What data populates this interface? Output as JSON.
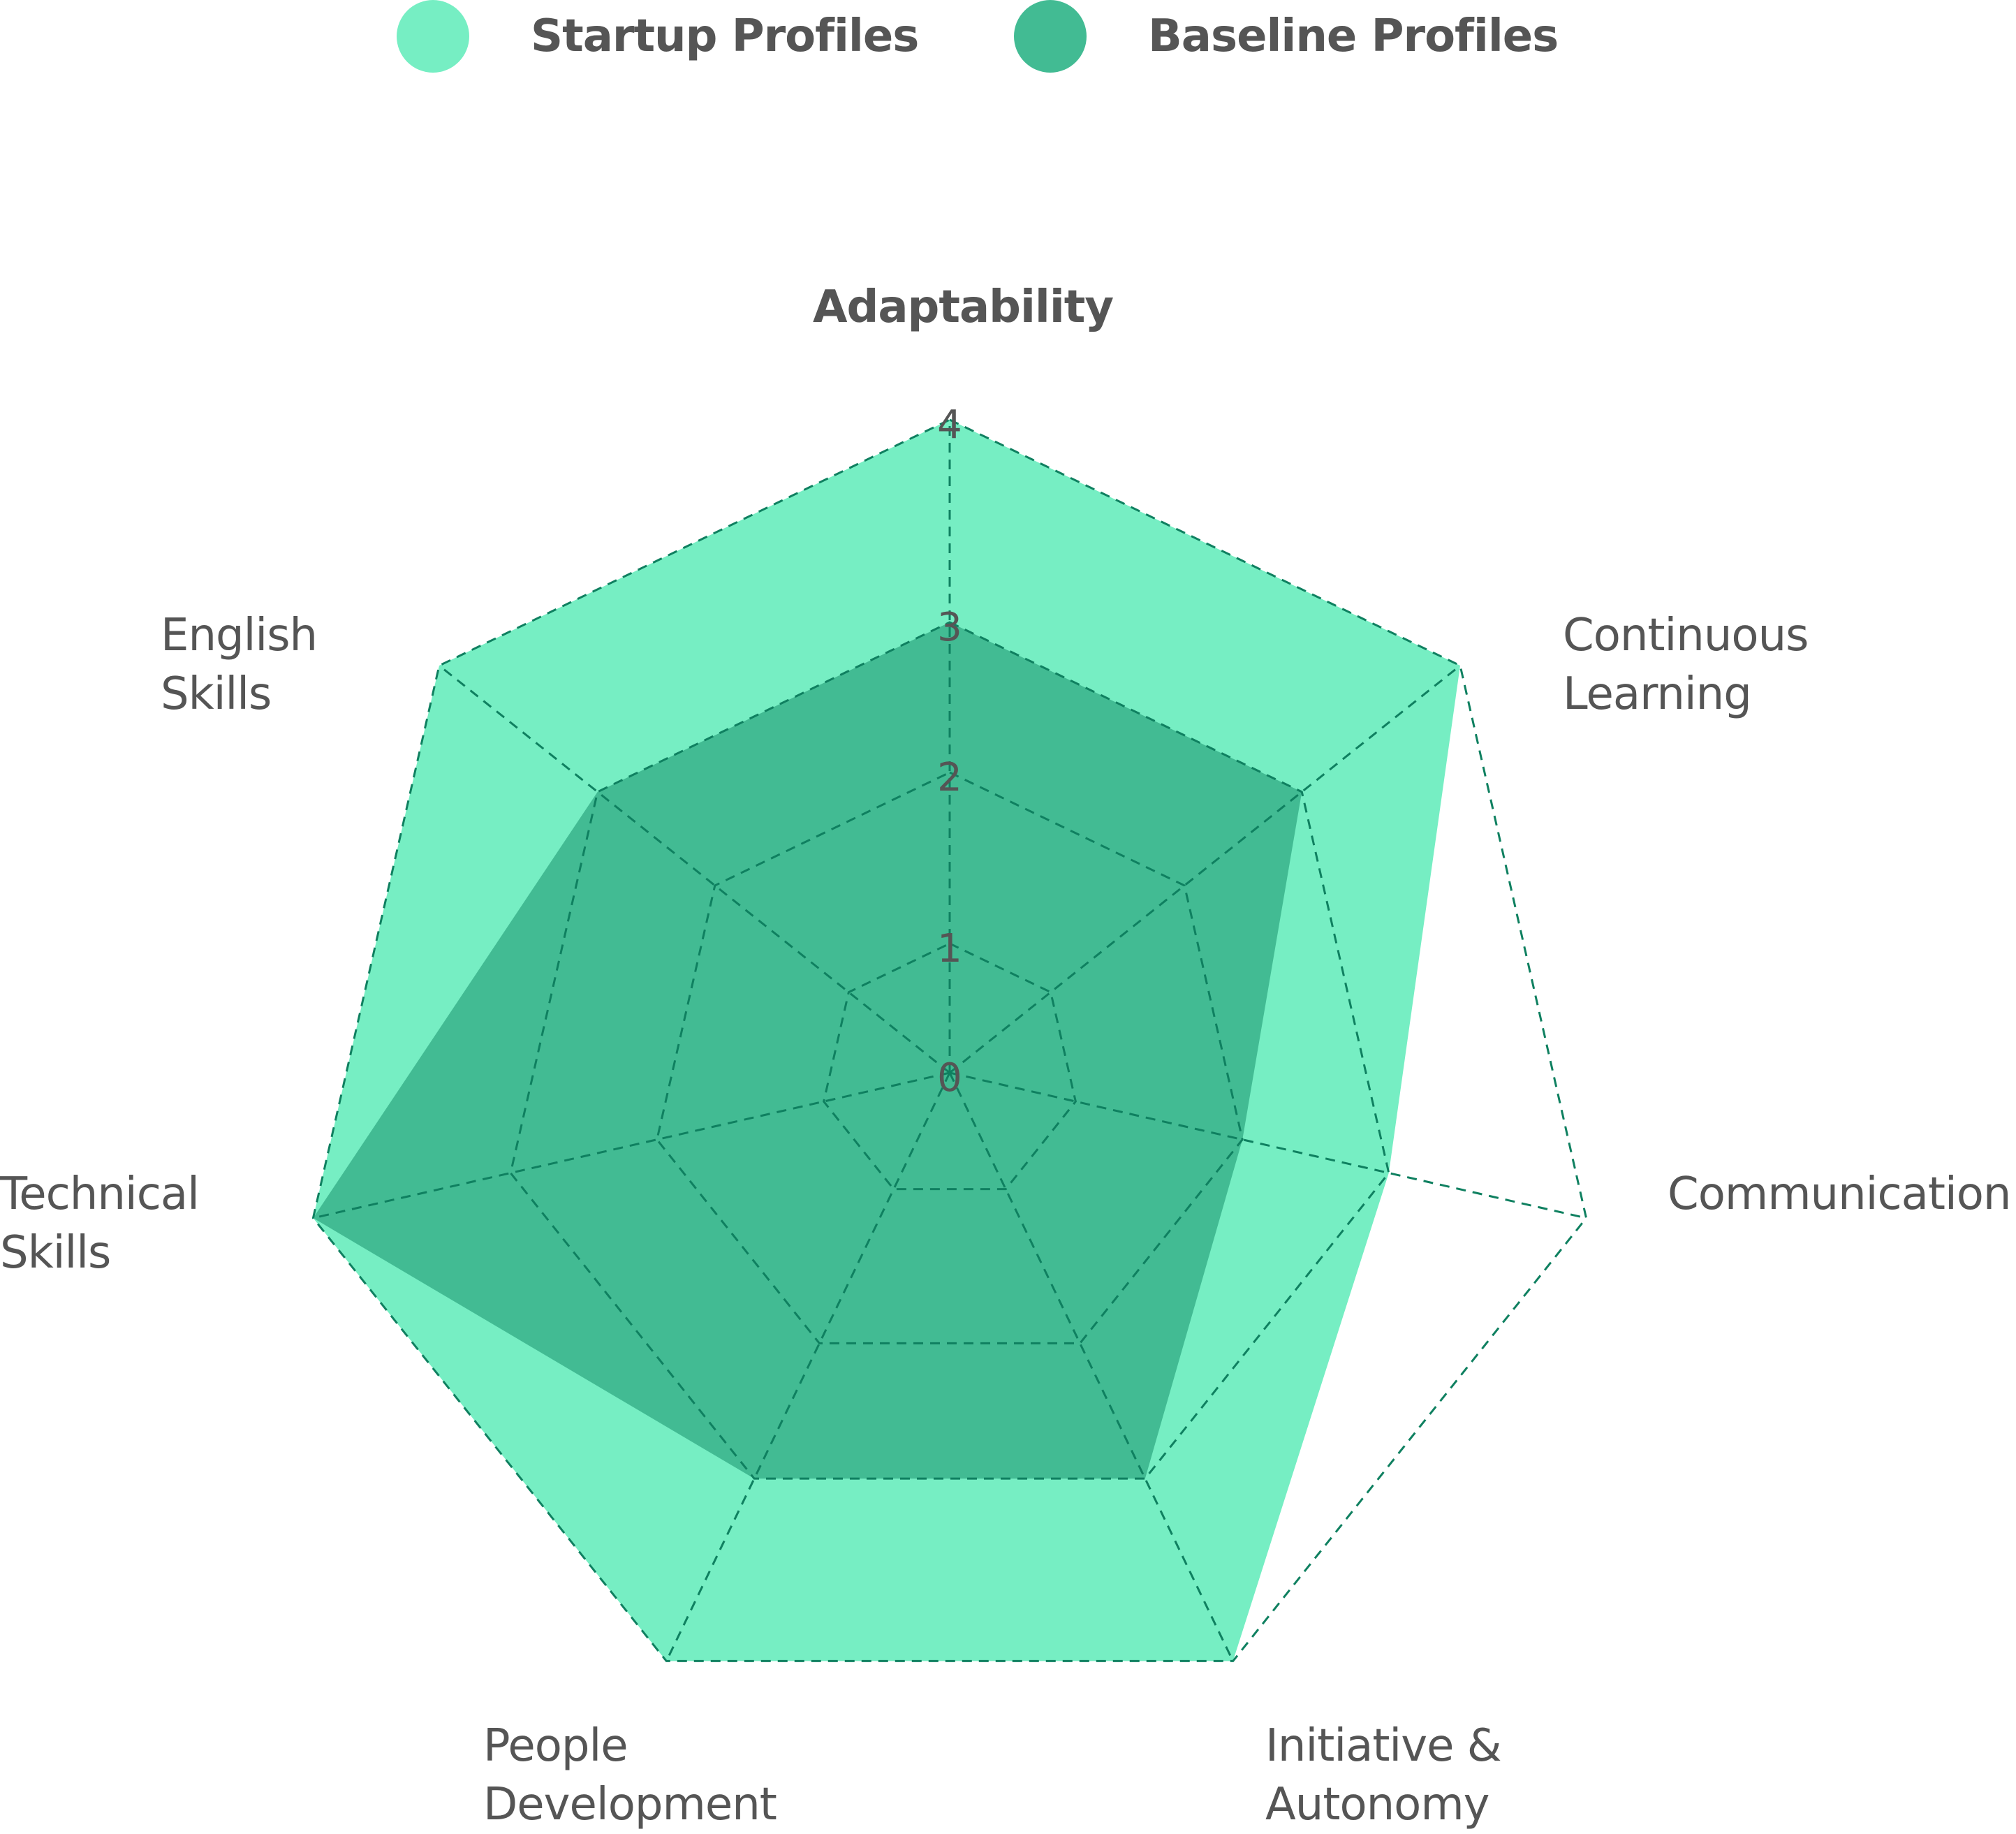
{
  "legend": {
    "items": [
      {
        "label": "Startup Profiles",
        "color": "#76EEC3"
      },
      {
        "label": "Baseline Profiles",
        "color": "#42BB93"
      }
    ]
  },
  "axes": {
    "labels": [
      {
        "text": "Adaptability",
        "bold": true
      },
      {
        "text": "Continuous\nLearning",
        "bold": false
      },
      {
        "text": "Communication",
        "bold": false
      },
      {
        "text": "Initiative &\nAutonomy",
        "bold": false
      },
      {
        "text": "People\nDevelopment",
        "bold": false
      },
      {
        "text": "Technical\nSkills",
        "bold": false
      },
      {
        "text": "English\nSkills",
        "bold": false
      }
    ],
    "ticks": [
      "0",
      "1",
      "2",
      "3",
      "4"
    ]
  },
  "colors": {
    "startup": "#76EEC3",
    "baseline": "#42BB93",
    "grid": "#0F8060",
    "text": "#555555"
  },
  "chart_data": {
    "type": "radar",
    "title": "",
    "categories": [
      "Adaptability",
      "Continuous Learning",
      "Communication",
      "Initiative & Autonomy",
      "People Development",
      "Technical Skills",
      "English Skills"
    ],
    "series": [
      {
        "name": "Startup Profiles",
        "values": [
          4,
          4,
          3,
          4,
          4,
          4,
          4
        ],
        "color": "#76EEC3"
      },
      {
        "name": "Baseline Profiles",
        "values": [
          3,
          3,
          2,
          3,
          3,
          4,
          3
        ],
        "color": "#42BB93"
      }
    ],
    "rlim": [
      0,
      4
    ],
    "rticks": [
      0,
      1,
      2,
      3,
      4
    ],
    "grid": true,
    "legend_position": "top"
  }
}
